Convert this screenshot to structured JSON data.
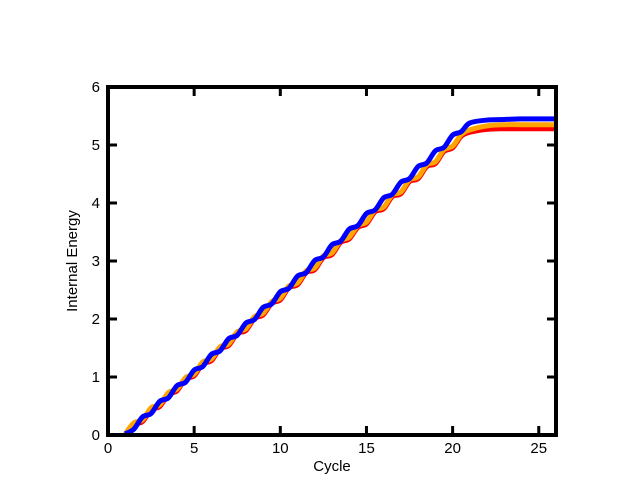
{
  "chart_data": {
    "type": "line",
    "x_label": "Cycle",
    "y_label": "Internal Energy",
    "xlim": [
      0,
      26
    ],
    "ylim": [
      0,
      6
    ],
    "xticks": [
      0,
      5,
      10,
      15,
      20,
      25
    ],
    "yticks": [
      0,
      1,
      2,
      3,
      4,
      5,
      6
    ],
    "x": [
      1,
      1.5,
      2,
      2.5,
      3,
      3.5,
      4,
      4.5,
      5,
      5.5,
      6,
      6.5,
      7,
      7.5,
      8,
      8.5,
      9,
      9.5,
      10,
      10.5,
      11,
      11.5,
      12,
      12.5,
      13,
      13.5,
      14,
      14.5,
      15,
      15.5,
      16,
      16.5,
      17,
      17.5,
      18,
      18.5,
      19,
      19.5,
      20,
      20.5,
      21,
      22,
      23,
      24,
      25,
      26
    ],
    "series": [
      {
        "color": "#ff0000",
        "values": [
          0.0,
          0.18,
          0.23,
          0.44,
          0.49,
          0.7,
          0.76,
          0.97,
          1.02,
          1.23,
          1.28,
          1.49,
          1.54,
          1.75,
          1.8,
          2.01,
          2.07,
          2.27,
          2.33,
          2.54,
          2.59,
          2.8,
          2.85,
          3.06,
          3.11,
          3.32,
          3.38,
          3.58,
          3.64,
          3.85,
          3.9,
          4.11,
          4.16,
          4.37,
          4.42,
          4.63,
          4.68,
          4.89,
          4.95,
          5.15,
          5.22,
          5.27,
          5.28,
          5.28,
          5.28,
          5.28
        ]
      },
      {
        "color": "#ffa500",
        "values": [
          0.02,
          0.21,
          0.26,
          0.47,
          0.52,
          0.73,
          0.79,
          0.99,
          1.05,
          1.26,
          1.31,
          1.52,
          1.57,
          1.78,
          1.83,
          2.04,
          2.1,
          2.3,
          2.36,
          2.57,
          2.62,
          2.83,
          2.88,
          3.09,
          3.14,
          3.35,
          3.41,
          3.61,
          3.67,
          3.88,
          3.93,
          4.14,
          4.19,
          4.4,
          4.45,
          4.66,
          4.71,
          4.92,
          4.98,
          5.18,
          5.26,
          5.33,
          5.35,
          5.35,
          5.35,
          5.35
        ]
      },
      {
        "color": "#0000ff",
        "values": [
          0.02,
          0.1,
          0.31,
          0.37,
          0.58,
          0.64,
          0.85,
          0.91,
          1.12,
          1.18,
          1.39,
          1.45,
          1.66,
          1.72,
          1.93,
          1.99,
          2.2,
          2.26,
          2.47,
          2.53,
          2.74,
          2.8,
          3.01,
          3.07,
          3.28,
          3.34,
          3.55,
          3.61,
          3.82,
          3.88,
          4.09,
          4.15,
          4.36,
          4.42,
          4.63,
          4.69,
          4.9,
          4.96,
          5.17,
          5.23,
          5.38,
          5.43,
          5.44,
          5.45,
          5.45,
          5.45
        ]
      }
    ]
  }
}
